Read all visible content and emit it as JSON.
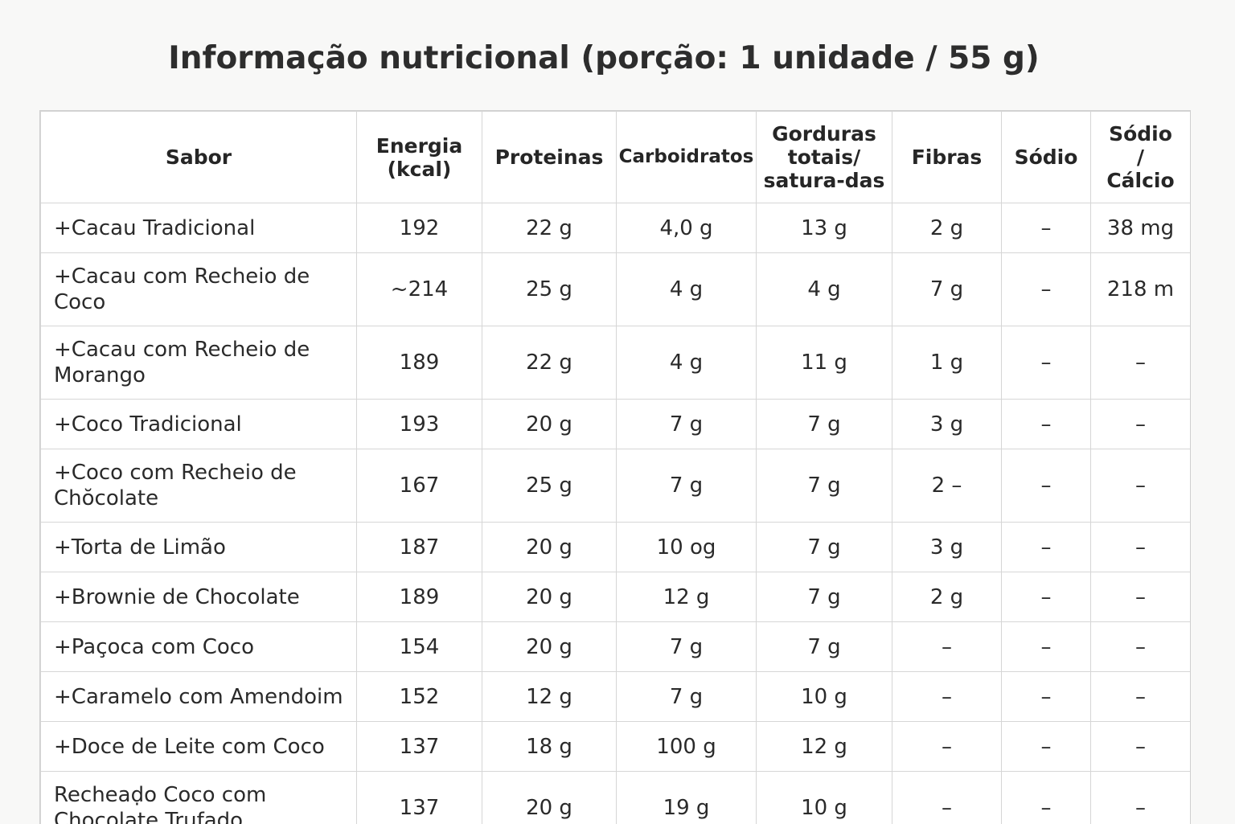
{
  "title": "Informação nutricional (porção: 1 unidade / 55 g)",
  "headers": {
    "sabor": "Sabor",
    "energia_l1": "Energia",
    "energia_l2": "(kcal)",
    "proteinas": "Proteinas",
    "carboidratos": "Carboidratos",
    "gorduras_l1": "Gorduras",
    "gorduras_l2": "totais/",
    "gorduras_l3": "satura-das",
    "fibras": "Fibras",
    "sodio": "Sódio",
    "sodio_calcio_l1": "Sódio",
    "sodio_calcio_l2": "/",
    "sodio_calcio_l3": "Cálcio"
  },
  "rows": [
    {
      "sabor": "+Cacau Tradicional",
      "energia": "192",
      "proteinas": "22 g",
      "carboidratos": "4,0 g",
      "gorduras": "13 g",
      "fibras": "2 g",
      "sodio": "–",
      "sodio_calcio": "38 mg"
    },
    {
      "sabor": "+Cacau com Recheio de Coco",
      "energia": "~214",
      "proteinas": "25 g",
      "carboidratos": "4 g",
      "gorduras": "4 g",
      "fibras": "7 g",
      "sodio": "–",
      "sodio_calcio": "218 m"
    },
    {
      "sabor": "+Cacau com Recheio de Morango",
      "energia": "189",
      "proteinas": "22 g",
      "carboidratos": "4 g",
      "gorduras": "11 g",
      "fibras": "1 g",
      "sodio": "–",
      "sodio_calcio": "–"
    },
    {
      "sabor": "+Coco Tradicional",
      "energia": "193",
      "proteinas": "20 g",
      "carboidratos": "7 g",
      "gorduras": "7 g",
      "fibras": "3 g",
      "sodio": "–",
      "sodio_calcio": "–"
    },
    {
      "sabor": "+Coco com Recheio de Chŏcolate",
      "energia": "167",
      "proteinas": "25 g",
      "carboidratos": "7 g",
      "gorduras": "7 g",
      "fibras": "2 –",
      "sodio": "–",
      "sodio_calcio": "–"
    },
    {
      "sabor": "+Torta de Limão",
      "energia": "187",
      "proteinas": "20 g",
      "carboidratos": "10 og",
      "gorduras": "7 g",
      "fibras": "3 g",
      "sodio": "–",
      "sodio_calcio": "–"
    },
    {
      "sabor": "+Brownie de Chocolate",
      "energia": "189",
      "proteinas": "20 g",
      "carboidratos": "12 g",
      "gorduras": "7 g",
      "fibras": "2 g",
      "sodio": "–",
      "sodio_calcio": "–"
    },
    {
      "sabor": "+Paçoca com Coco",
      "energia": "154",
      "proteinas": "20 g",
      "carboidratos": "7 g",
      "gorduras": "7 g",
      "fibras": "–",
      "sodio": "–",
      "sodio_calcio": "–"
    },
    {
      "sabor": "+Caramelo com Amendoim",
      "energia": "15̄2",
      "proteinas": "12 g",
      "carboidratos": "7 g",
      "gorduras": "10 g",
      "fibras": "–",
      "sodio": "–",
      "sodio_calcio": "–"
    },
    {
      "sabor": "+Doce de Leite com Coco",
      "energia": "137",
      "proteinas": "18 g",
      "carboidratos": "100 g",
      "gorduras": "12 g",
      "fibras": "–",
      "sodio": "–",
      "sodio_calcio": "–"
    },
    {
      "sabor": "Recheaḍo Coco com Chocolate Trufado",
      "energia": "137",
      "proteinas": "20 g",
      "carboidratos": "19 g",
      "gorduras": "10 g",
      "fibras": "–",
      "sodio": "–",
      "sodio_calcio": "–"
    }
  ]
}
